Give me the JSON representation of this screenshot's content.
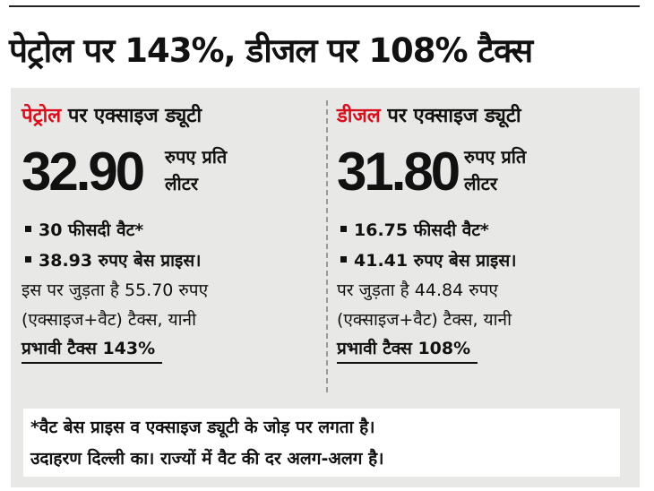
{
  "headline": "पेट्रोल पर 143%, डीजल पर 108% टैक्स",
  "petrol": {
    "fuel_name": "पेट्रोल",
    "title_rest": " पर एक्साइज ड्यूटी",
    "price": "32.90",
    "unit_line1": "रुपए प्रति",
    "unit_line2": "लीटर",
    "bullet1": "30 फीसदी वैट*",
    "bullet2": "38.93 रुपए बेस प्राइस।",
    "para_line1": "इस पर जुड़ता है 55.70 रुपए",
    "para_line2": "(एक्साइज+वैट) टैक्स, यानी",
    "effective": "प्रभावी टैक्स 143%"
  },
  "diesel": {
    "fuel_name": "डीजल",
    "title_rest": " पर एक्साइज ड्यूटी",
    "price": "31.80",
    "unit_line1": "रुपए प्रति",
    "unit_line2": "लीटर",
    "bullet1": "16.75 फीसदी वैट*",
    "bullet2": "41.41 रुपए बेस प्राइस।",
    "para_line1": "पर जुड़ता है 44.84 रुपए",
    "para_line2": "(एक्साइज+वैट) टैक्स, यानी",
    "effective": "प्रभावी टैक्स 108%"
  },
  "footnote": {
    "line1": "*वैट बेस प्राइस व एक्साइज ड्यूटी के जोड़ पर लगता है।",
    "line2": "उदाहरण दिल्ली का। राज्यों में वैट की दर अलग-अलग है।"
  },
  "colors": {
    "fuel_name": "#d6101e",
    "panel_bg": "#e8e8e6",
    "text": "#111111"
  }
}
